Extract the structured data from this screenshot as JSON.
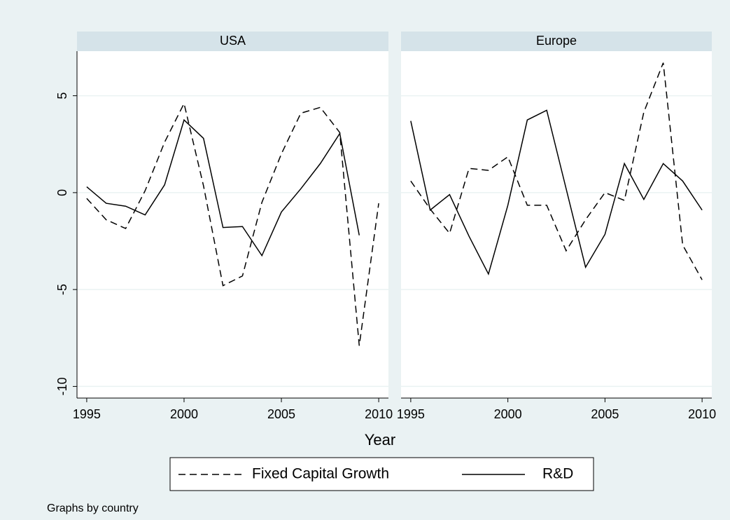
{
  "chart_data": [
    {
      "type": "line",
      "title": "USA",
      "x": [
        1995,
        1996,
        1997,
        1998,
        1999,
        2000,
        2001,
        2002,
        2003,
        2004,
        2005,
        2006,
        2007,
        2008,
        2009,
        2010
      ],
      "series": [
        {
          "name": "Fixed Capital Growth",
          "color": "#000000",
          "dash": true,
          "values": [
            -0.3,
            -1.4,
            -1.85,
            0.1,
            2.6,
            4.6,
            0.35,
            -4.8,
            -4.3,
            -0.5,
            2.0,
            4.1,
            4.4,
            3.1,
            -7.9,
            -0.55
          ]
        },
        {
          "name": "R&D",
          "color": "#000000",
          "dash": false,
          "values": [
            0.3,
            -0.55,
            -0.7,
            -1.15,
            0.4,
            3.75,
            2.8,
            -1.8,
            -1.75,
            -3.25,
            -1.0,
            0.2,
            1.5,
            3.05,
            -2.2,
            null
          ]
        }
      ],
      "xlim": [
        1994.5,
        2010.5
      ],
      "xticks": [
        1995,
        2000,
        2005,
        2010
      ],
      "ylim": [
        -10.6,
        7.3
      ],
      "yticks": [
        -10,
        -5,
        0,
        5
      ],
      "grid": true
    },
    {
      "type": "line",
      "title": "Europe",
      "x": [
        1995,
        1996,
        1997,
        1998,
        1999,
        2000,
        2001,
        2002,
        2003,
        2004,
        2005,
        2006,
        2007,
        2008,
        2009,
        2010
      ],
      "series": [
        {
          "color": "#000000",
          "dash": true,
          "values": [
            0.6,
            -0.85,
            -2.1,
            1.25,
            1.15,
            1.85,
            -0.65,
            -0.65,
            -3.0,
            -1.4,
            0,
            -0.4,
            4.15,
            6.7,
            -2.7,
            -4.5
          ]
        },
        {
          "color": "#000000",
          "dash": false,
          "values": [
            3.7,
            -0.9,
            -0.1,
            -2.25,
            -4.2,
            -0.65,
            3.75,
            4.25,
            0.2,
            -3.85,
            -2.15,
            1.5,
            -0.35,
            1.5,
            0.6,
            -0.9
          ]
        }
      ],
      "xlim": [
        1994.5,
        2010.5
      ],
      "xticks": [
        1995,
        2000,
        2005,
        2010
      ],
      "ylim": [
        -10.6,
        7.3
      ],
      "yticks": [
        -10,
        -5,
        0,
        5
      ],
      "grid": true
    }
  ],
  "x_title": "Year",
  "note": "Graphs by country"
}
